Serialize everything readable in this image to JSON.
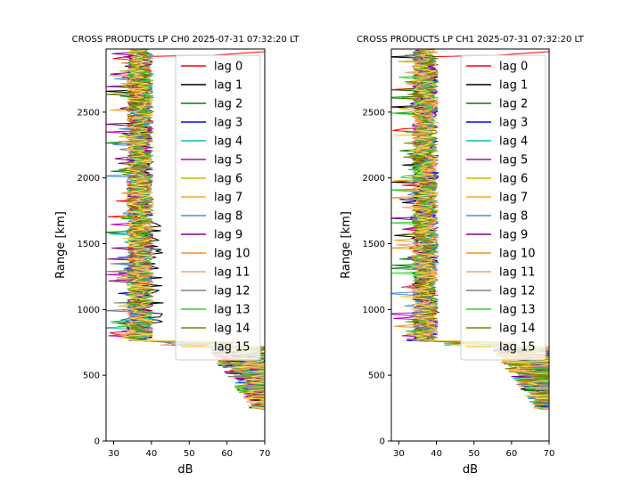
{
  "chart_data": [
    {
      "type": "line",
      "title": "CROSS PRODUCTS LP CH0 2025-07-31 07:32:20 LT",
      "xlabel": "dB",
      "ylabel": "Range [km]",
      "xlim": [
        28,
        70
      ],
      "ylim": [
        0,
        2980
      ],
      "xticks": [
        "30",
        "40",
        "50",
        "60",
        "70"
      ],
      "yticks": [
        "0",
        "500",
        "1000",
        "1500",
        "2000",
        "2500"
      ],
      "grid": false,
      "legend": "upper-right",
      "legend_position": "top-right",
      "series": [
        {
          "name": "lag 0",
          "color": "#ff0000"
        },
        {
          "name": "lag 1",
          "color": "#000000"
        },
        {
          "name": "lag 2",
          "color": "#008000"
        },
        {
          "name": "lag 3",
          "color": "#0000ff"
        },
        {
          "name": "lag 4",
          "color": "#00bfbf"
        },
        {
          "name": "lag 5",
          "color": "#bf00bf"
        },
        {
          "name": "lag 6",
          "color": "#bfbf00"
        },
        {
          "name": "lag 7",
          "color": "#f5a623"
        },
        {
          "name": "lag 8",
          "color": "#4a90d9"
        },
        {
          "name": "lag 9",
          "color": "#800080"
        },
        {
          "name": "lag 10",
          "color": "#ff8c1a"
        },
        {
          "name": "lag 11",
          "color": "#f0a080"
        },
        {
          "name": "lag 12",
          "color": "#808080"
        },
        {
          "name": "lag 13",
          "color": "#32cd32"
        },
        {
          "name": "lag 14",
          "color": "#808000"
        },
        {
          "name": "lag 15",
          "color": "#ffd24d"
        }
      ]
    },
    {
      "type": "line",
      "title": "CROSS PRODUCTS LP CH1 2025-07-31 07:32:20 LT",
      "xlabel": "dB",
      "ylabel": "Range [km]",
      "xlim": [
        28,
        70
      ],
      "ylim": [
        0,
        2980
      ],
      "xticks": [
        "30",
        "40",
        "50",
        "60",
        "70"
      ],
      "yticks": [
        "0",
        "500",
        "1000",
        "1500",
        "2000",
        "2500"
      ],
      "grid": false,
      "legend_position": "top-right",
      "series": [
        {
          "name": "lag 0",
          "color": "#ff0000"
        },
        {
          "name": "lag 1",
          "color": "#000000"
        },
        {
          "name": "lag 2",
          "color": "#008000"
        },
        {
          "name": "lag 3",
          "color": "#0000ff"
        },
        {
          "name": "lag 4",
          "color": "#00bfbf"
        },
        {
          "name": "lag 5",
          "color": "#bf00bf"
        },
        {
          "name": "lag 6",
          "color": "#bfbf00"
        },
        {
          "name": "lag 7",
          "color": "#f5a623"
        },
        {
          "name": "lag 8",
          "color": "#4a90d9"
        },
        {
          "name": "lag 9",
          "color": "#800080"
        },
        {
          "name": "lag 10",
          "color": "#ff8c1a"
        },
        {
          "name": "lag 11",
          "color": "#f0a080"
        },
        {
          "name": "lag 12",
          "color": "#808080"
        },
        {
          "name": "lag 13",
          "color": "#32cd32"
        },
        {
          "name": "lag 14",
          "color": "#808000"
        },
        {
          "name": "lag 15",
          "color": "#ffd24d"
        }
      ]
    }
  ]
}
